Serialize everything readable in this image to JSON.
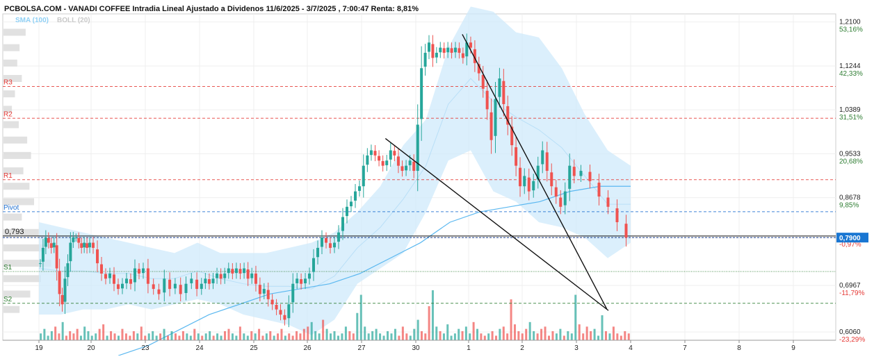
{
  "header": {
    "title": "PCBOLSA.COM - VANADI COFFEE Intradia Lineal Ajustado a Dividenos 11/6/2025 - 3/7/2025 , 7:00:47 Renta: 8,81%",
    "indicator_sma": "SMA (100)",
    "indicator_boll": "BOLL (20)"
  },
  "colors": {
    "up": "#26a69a",
    "down": "#ef5350",
    "resistance": "#e53935",
    "support": "#2e7d32",
    "pivot": "#1e6fd0",
    "sma": "#5bb8f0",
    "bollinger_fill": "#cfe9fb",
    "price_tag": "#1976d2"
  },
  "chart_data": {
    "type": "candlestick",
    "title": "PCBOLSA.COM - VANADI COFFEE Intradia Lineal Ajustado a Dividenos 11/6/2025 - 3/7/2025 , 7:00:47 Renta: 8,81%",
    "x_tick_labels": [
      "19",
      "20",
      "23",
      "24",
      "25",
      "26",
      "27",
      "30",
      "1",
      "2",
      "3",
      "4",
      "7",
      "8",
      "9"
    ],
    "y_tick_labels": [
      {
        "value": 1.21,
        "label": "1,2100",
        "pct": "53,16%"
      },
      {
        "value": 1.1244,
        "label": "1,1244",
        "pct": "42,33%"
      },
      {
        "value": 1.0389,
        "label": "1,0389",
        "pct": "31,51%"
      },
      {
        "value": 0.9533,
        "label": "0,9533",
        "pct": "20,68%"
      },
      {
        "value": 0.8678,
        "label": "0,8678",
        "pct": "9,85%"
      },
      {
        "value": 0.79,
        "label": "",
        "pct": "-0,97%"
      },
      {
        "value": 0.6967,
        "label": "0,6967",
        "pct": "-11,79%"
      },
      {
        "value": 0.606,
        "label": "0,6060",
        "pct": "-23,29%"
      }
    ],
    "ylim": [
      0.59,
      1.2258
    ],
    "reference_price": {
      "value": 0.793,
      "label": "0,793"
    },
    "last_price": {
      "value": 0.79,
      "label": "0,7900"
    },
    "levels": [
      {
        "name": "R3",
        "value": 1.0845,
        "kind": "resistance"
      },
      {
        "name": "R2",
        "value": 1.0225,
        "kind": "resistance"
      },
      {
        "name": "R1",
        "value": 0.9028,
        "kind": "resistance"
      },
      {
        "name": "Pivot",
        "value": 0.8405,
        "kind": "pivot"
      },
      {
        "name": "S1",
        "value": 0.724,
        "kind": "support"
      },
      {
        "name": "S2",
        "value": 0.662,
        "kind": "support"
      }
    ],
    "days": [
      {
        "label": "19",
        "prices": [
          0.74,
          0.77,
          0.79,
          0.78,
          0.77,
          0.78,
          0.73,
          0.68,
          0.66,
          0.71,
          0.74,
          0.78,
          0.79,
          0.79,
          0.78,
          0.77,
          0.78,
          0.77,
          0.78
        ]
      },
      {
        "label": "20",
        "prices": [
          0.77,
          0.74,
          0.72,
          0.71,
          0.72,
          0.7,
          0.69,
          0.7,
          0.71,
          0.7,
          0.73,
          0.72,
          0.73
        ]
      },
      {
        "label": "23",
        "prices": [
          0.7,
          0.69,
          0.68,
          0.71,
          0.69,
          0.7,
          0.68,
          0.7,
          0.71,
          0.69
        ]
      },
      {
        "label": "24",
        "prices": [
          0.7,
          0.71,
          0.7,
          0.71,
          0.72,
          0.71,
          0.72,
          0.73,
          0.72,
          0.73,
          0.72,
          0.73,
          0.71,
          0.72
        ]
      },
      {
        "label": "25",
        "prices": [
          0.7,
          0.68,
          0.69,
          0.67,
          0.66,
          0.65,
          0.64,
          0.63,
          0.66,
          0.7,
          0.71,
          0.7,
          0.71
        ]
      },
      {
        "label": "26",
        "prices": [
          0.72,
          0.75,
          0.77,
          0.79,
          0.78,
          0.77,
          0.78,
          0.8,
          0.83,
          0.85,
          0.86,
          0.88,
          0.89
        ]
      },
      {
        "label": "27",
        "prices": [
          0.93,
          0.95,
          0.96,
          0.95,
          0.94,
          0.93,
          0.94,
          0.96,
          0.95,
          0.93,
          0.92,
          0.93,
          0.94,
          0.92
        ]
      },
      {
        "label": "30",
        "prices": [
          1.01,
          1.12,
          1.15,
          1.17,
          1.14,
          1.15,
          1.16,
          1.15,
          1.16,
          1.15,
          1.16,
          1.15,
          1.14,
          1.17
        ]
      },
      {
        "label": "1",
        "prices": [
          1.16,
          1.13,
          1.11,
          1.08,
          1.04,
          0.98,
          1.06,
          1.1,
          1.05,
          1.01,
          0.97,
          0.93,
          0.89
        ]
      },
      {
        "label": "2",
        "prices": [
          0.91,
          0.88,
          0.9,
          0.93,
          0.96,
          0.92,
          0.89,
          0.87,
          0.85,
          0.88,
          0.93,
          0.91
        ]
      },
      {
        "label": "3",
        "prices": [
          0.92,
          0.9,
          0.87,
          0.85,
          0.82,
          0.79
        ]
      }
    ],
    "sma_100": [
      0.56,
      0.58,
      0.61,
      0.64,
      0.66,
      0.68,
      0.69,
      0.7,
      0.72,
      0.75,
      0.78,
      0.82,
      0.84,
      0.85,
      0.86,
      0.88,
      0.89,
      0.89
    ],
    "bollinger_20": {
      "upper": [
        0.82,
        0.81,
        0.8,
        0.79,
        0.78,
        0.77,
        0.76,
        0.78,
        0.76,
        0.76,
        0.76,
        0.77,
        0.78,
        0.8,
        0.84,
        0.89,
        0.97,
        1.02,
        1.16,
        1.24,
        1.23,
        1.19,
        1.18,
        1.12,
        1.03,
        0.96,
        0.93
      ],
      "lower": [
        0.64,
        0.64,
        0.65,
        0.65,
        0.66,
        0.65,
        0.66,
        0.67,
        0.66,
        0.64,
        0.63,
        0.62,
        0.6,
        0.63,
        0.7,
        0.73,
        0.76,
        0.84,
        0.94,
        0.96,
        0.88,
        0.86,
        0.82,
        0.81,
        0.79,
        0.75,
        0.78
      ]
    },
    "trendlines": [
      {
        "from": [
          6.44,
          0.983
        ],
        "to": [
          10.59,
          0.648
        ]
      },
      {
        "from": [
          7.88,
          1.186
        ],
        "to": [
          10.56,
          0.651
        ]
      }
    ],
    "volume": [
      3,
      5,
      2,
      4,
      6,
      3,
      8,
      2,
      4,
      3,
      5,
      2,
      6,
      4,
      2,
      3,
      5,
      7,
      2,
      4,
      3,
      2,
      5,
      3,
      2,
      4,
      3,
      6,
      2,
      3,
      4,
      2,
      3,
      5,
      2,
      4,
      3,
      2,
      4,
      3,
      2,
      5,
      3,
      2,
      3,
      4,
      2,
      3,
      2,
      4,
      5,
      3,
      2,
      6,
      3,
      2,
      4,
      3,
      5,
      2,
      3,
      4,
      2,
      3,
      5,
      2,
      3,
      2,
      4,
      3,
      5,
      6,
      8,
      4,
      3,
      9,
      5,
      3,
      4,
      2,
      3,
      6,
      4,
      3,
      12,
      20,
      6,
      3,
      4,
      5,
      3,
      2,
      4,
      3,
      5,
      2,
      6,
      3,
      2,
      5,
      9,
      4,
      3,
      15,
      22,
      6,
      4,
      3,
      7,
      2,
      3,
      5,
      4,
      6,
      3,
      8,
      5,
      3,
      2,
      3,
      4,
      2,
      5,
      6,
      3,
      18,
      7,
      4,
      3,
      5,
      8,
      4,
      3,
      5,
      6,
      2,
      4,
      3,
      5,
      2,
      4,
      3,
      20,
      7,
      3,
      6,
      4,
      5,
      2,
      11,
      4,
      3,
      6,
      3,
      2,
      4,
      3
    ],
    "volume_profile": [
      {
        "price": 1.19,
        "width": 58
      },
      {
        "price": 1.16,
        "width": 42
      },
      {
        "price": 1.13,
        "width": 36
      },
      {
        "price": 1.1,
        "width": 48
      },
      {
        "price": 1.07,
        "width": 30
      },
      {
        "price": 1.04,
        "width": 22
      },
      {
        "price": 1.01,
        "width": 40
      },
      {
        "price": 0.98,
        "width": 62
      },
      {
        "price": 0.95,
        "width": 72
      },
      {
        "price": 0.92,
        "width": 52
      },
      {
        "price": 0.89,
        "width": 68
      },
      {
        "price": 0.86,
        "width": 80
      },
      {
        "price": 0.83,
        "width": 48
      },
      {
        "price": 0.8,
        "width": 92
      },
      {
        "price": 0.77,
        "width": 110
      },
      {
        "price": 0.74,
        "width": 125
      },
      {
        "price": 0.71,
        "width": 98
      },
      {
        "price": 0.68,
        "width": 70
      },
      {
        "price": 0.65,
        "width": 42
      }
    ]
  }
}
